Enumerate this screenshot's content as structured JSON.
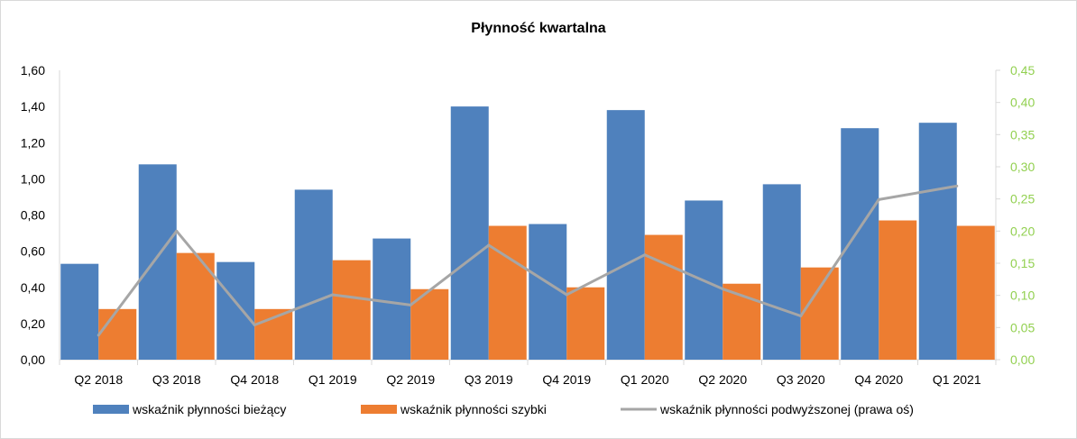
{
  "chart_data": {
    "type": "bar",
    "title": "Płynność kwartalna",
    "categories": [
      "Q2 2018",
      "Q3 2018",
      "Q4 2018",
      "Q1 2019",
      "Q2 2019",
      "Q3 2019",
      "Q4 2019",
      "Q1 2020",
      "Q2 2020",
      "Q3 2020",
      "Q4 2020",
      "Q1 2021"
    ],
    "series": [
      {
        "name": "wskaźnik płynności bieżący",
        "type": "bar",
        "axis": "left",
        "color": "#4f81bd",
        "values": [
          0.53,
          1.08,
          0.54,
          0.94,
          0.67,
          1.4,
          0.75,
          1.38,
          0.88,
          0.97,
          1.28,
          1.31
        ]
      },
      {
        "name": "wskaźnik płynności szybki",
        "type": "bar",
        "axis": "left",
        "color": "#ed7d31",
        "values": [
          0.28,
          0.59,
          0.28,
          0.55,
          0.39,
          0.74,
          0.4,
          0.69,
          0.42,
          0.51,
          0.77,
          0.74
        ]
      },
      {
        "name": "wskaźnik płynności podwyższonej (prawa oś)",
        "type": "line",
        "axis": "right",
        "color": "#a6a6a6",
        "values": [
          0.038,
          0.2,
          0.054,
          0.101,
          0.085,
          0.178,
          0.101,
          0.163,
          0.11,
          0.068,
          0.249,
          0.27
        ]
      }
    ],
    "ylim": [
      0,
      1.6
    ],
    "y_ticks": [
      "0,00",
      "0,20",
      "0,40",
      "0,60",
      "0,80",
      "1,00",
      "1,20",
      "1,40",
      "1,60"
    ],
    "y2lim": [
      0,
      0.45
    ],
    "y2_ticks": [
      "0,00",
      "0,05",
      "0,10",
      "0,15",
      "0,20",
      "0,25",
      "0,30",
      "0,35",
      "0,40",
      "0,45"
    ],
    "grid": false,
    "legend_position": "bottom"
  }
}
